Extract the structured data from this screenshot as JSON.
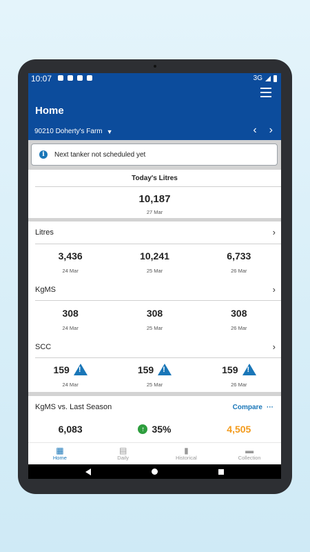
{
  "status": {
    "time": "10:07",
    "network": "3G"
  },
  "header": {
    "title": "Home",
    "farm": "90210 Doherty's Farm",
    "prev_icon": "chevron-left",
    "next_icon": "chevron-right"
  },
  "notice": {
    "text": "Next tanker not scheduled yet"
  },
  "today": {
    "label": "Today's Litres",
    "value": "10,187",
    "date": "27 Mar"
  },
  "metrics": [
    {
      "label": "Litres",
      "values": [
        {
          "v": "3,436",
          "d": "24 Mar"
        },
        {
          "v": "10,241",
          "d": "25 Mar"
        },
        {
          "v": "6,733",
          "d": "26 Mar"
        }
      ]
    },
    {
      "label": "KgMS",
      "values": [
        {
          "v": "308",
          "d": "24 Mar"
        },
        {
          "v": "308",
          "d": "25 Mar"
        },
        {
          "v": "308",
          "d": "26 Mar"
        }
      ]
    },
    {
      "label": "SCC",
      "values": [
        {
          "v": "159",
          "d": "24 Mar"
        },
        {
          "v": "159",
          "d": "25 Mar"
        },
        {
          "v": "159",
          "d": "26 Mar"
        }
      ]
    }
  ],
  "season": {
    "label": "KgMS vs. Last Season",
    "compare": "Compare",
    "current": "6,083",
    "change": "35%",
    "last": "4,505",
    "accent_orange": "#f39a1b"
  },
  "nav": [
    {
      "label": "Home",
      "icon": "grid-icon"
    },
    {
      "label": "Daily",
      "icon": "calendar-icon"
    },
    {
      "label": "Historical",
      "icon": "bar-chart-icon"
    },
    {
      "label": "Collection",
      "icon": "truck-icon"
    }
  ],
  "colors": {
    "primary": "#0c4c9c",
    "accent": "#1976b8",
    "success": "#2e9e3e"
  }
}
